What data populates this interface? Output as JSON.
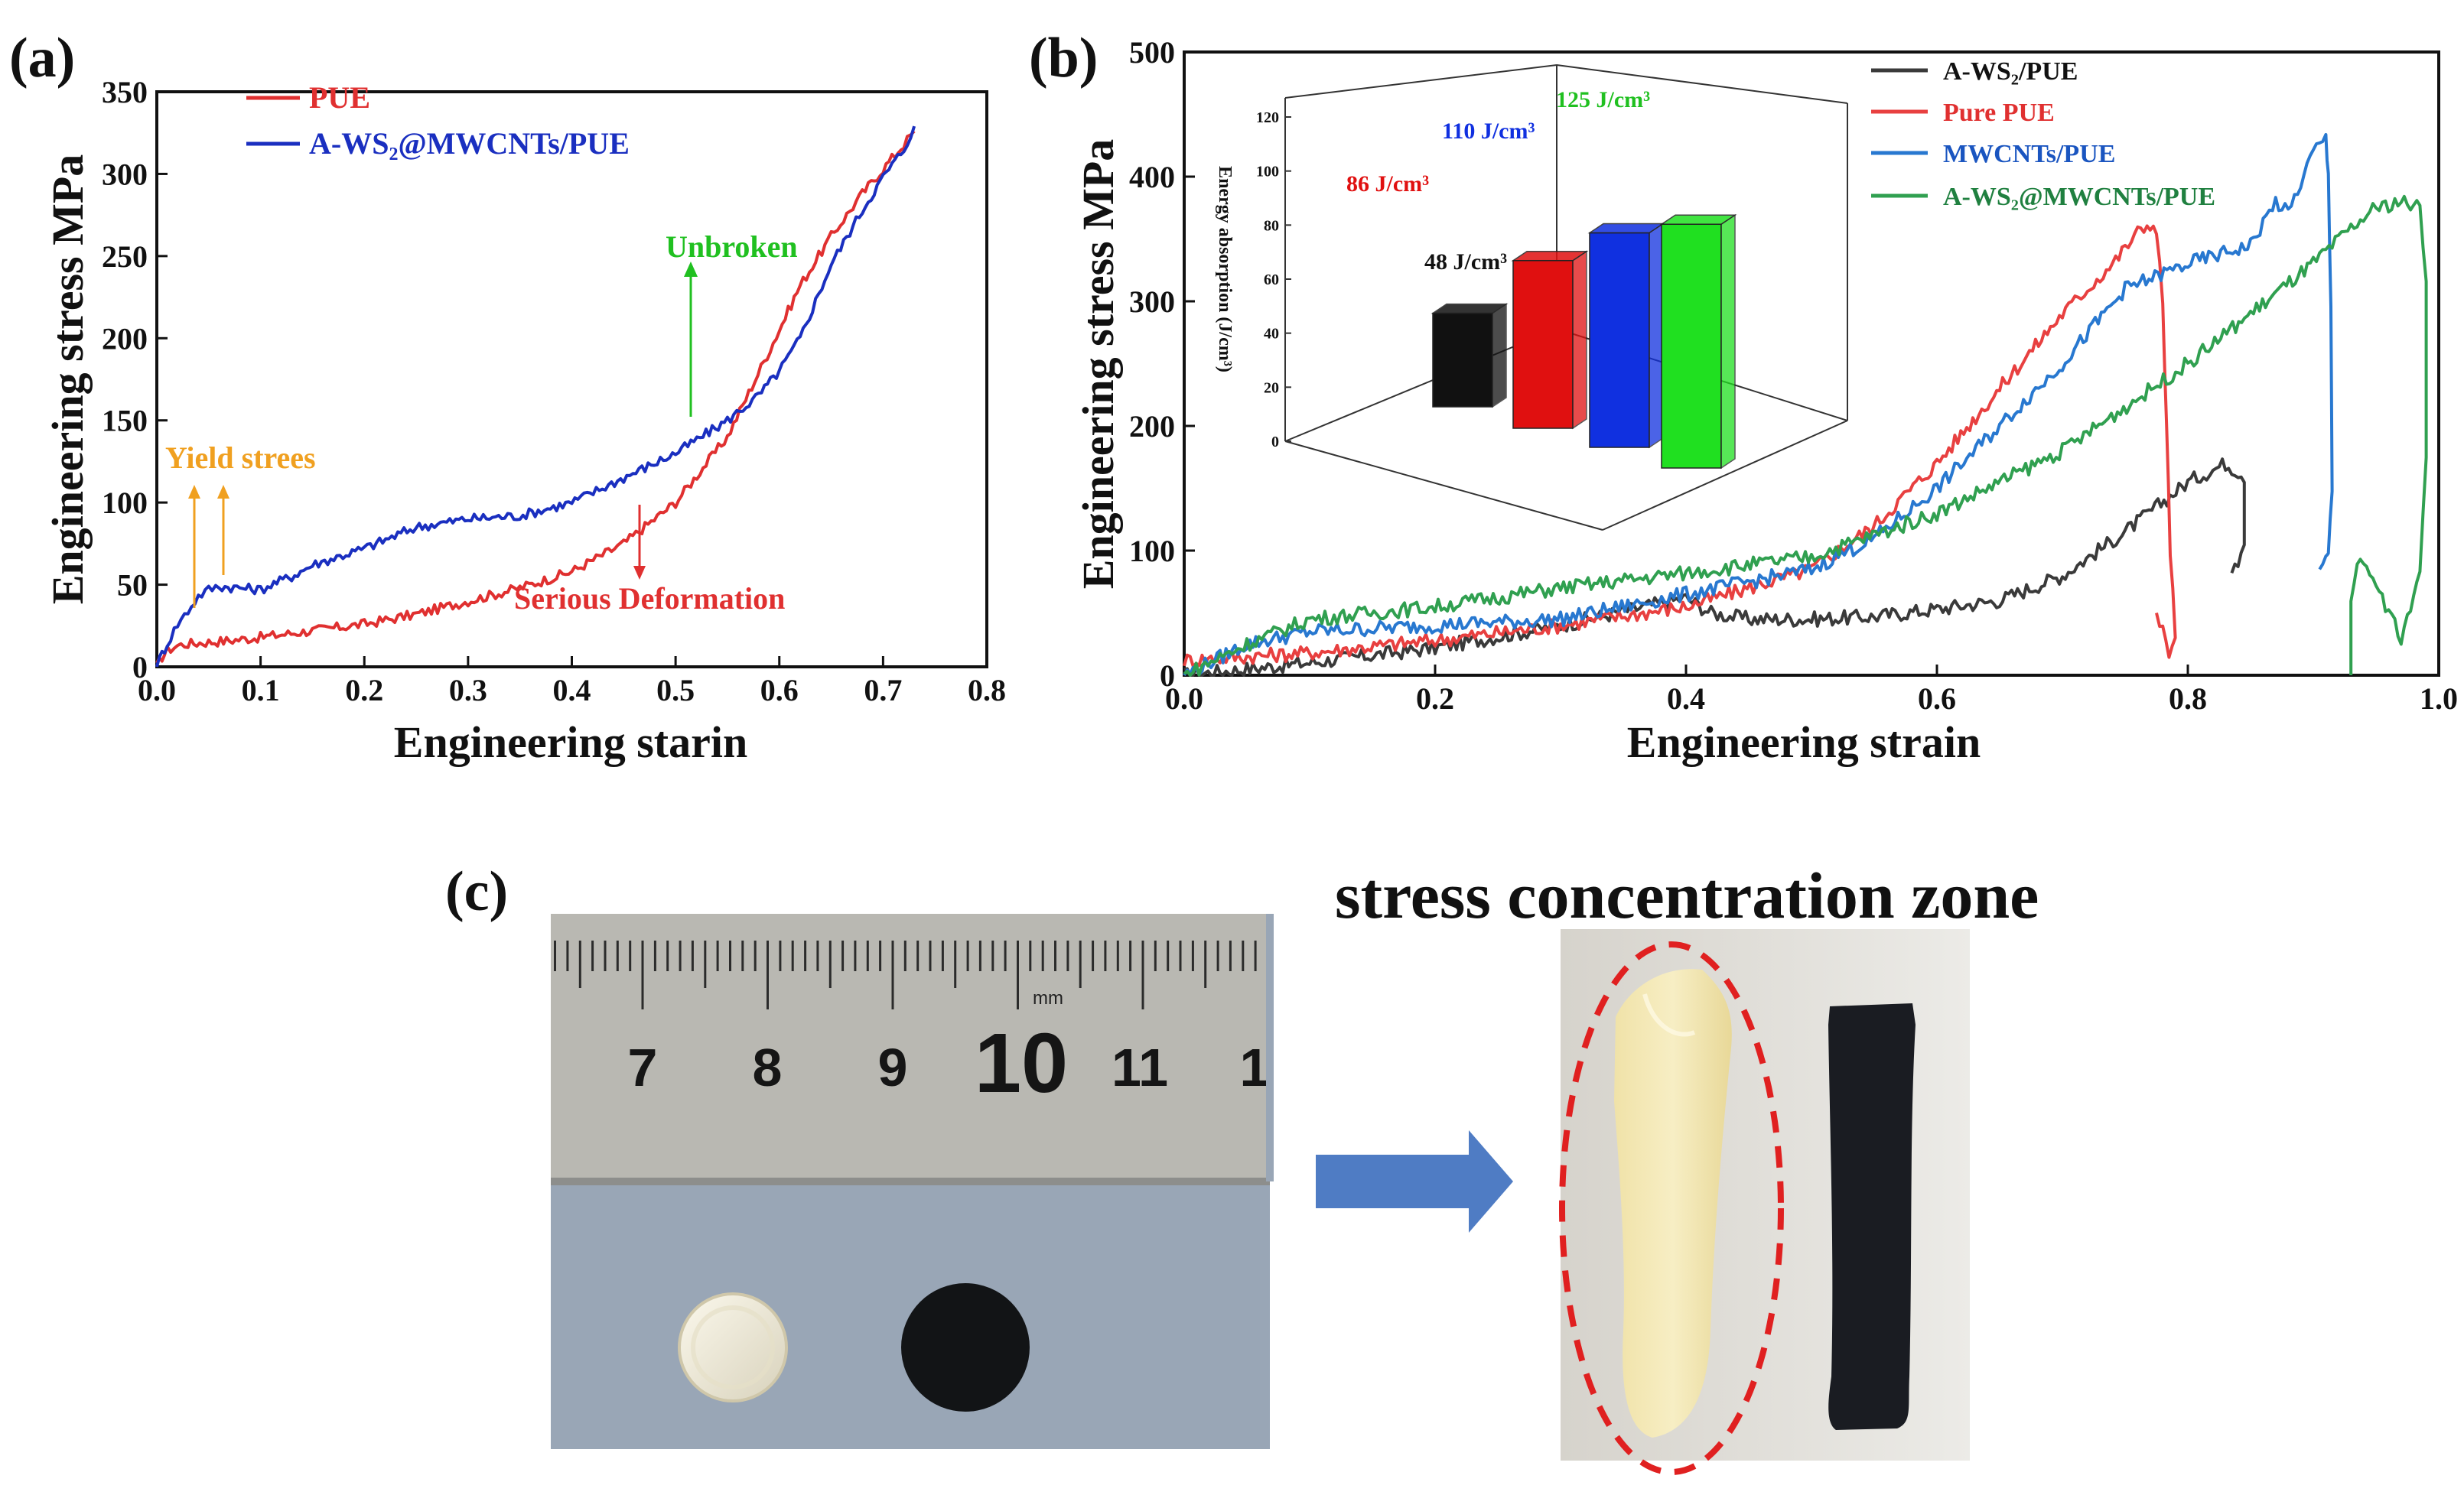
{
  "chart_data": [
    {
      "panel": "(a)",
      "type": "line",
      "xlabel": "Engineering starin",
      "ylabel": "Engineering stress MPa",
      "xlim": [
        0.0,
        0.8
      ],
      "ylim": [
        0,
        350
      ],
      "xticks": [
        "0.0",
        "0.1",
        "0.2",
        "0.3",
        "0.4",
        "0.5",
        "0.6",
        "0.7",
        "0.8"
      ],
      "yticks": [
        "0",
        "50",
        "100",
        "150",
        "200",
        "250",
        "300",
        "350"
      ],
      "legend_position": "top-left",
      "series": [
        {
          "name": "PUE",
          "color": "#e03030",
          "x": [
            0.0,
            0.005,
            0.01,
            0.02,
            0.03,
            0.05,
            0.07,
            0.1,
            0.15,
            0.2,
            0.25,
            0.3,
            0.35,
            0.4,
            0.45,
            0.5,
            0.55,
            0.6,
            0.62,
            0.65,
            0.68,
            0.7,
            0.72,
            0.73
          ],
          "y": [
            0,
            6,
            10,
            13,
            14,
            15,
            16,
            18,
            22,
            26,
            32,
            40,
            48,
            58,
            75,
            100,
            140,
            205,
            232,
            262,
            288,
            303,
            318,
            326
          ]
        },
        {
          "name": "A-WS₂@MWCNTs/PUE",
          "color": "#1a2fc0",
          "x": [
            0.0,
            0.005,
            0.01,
            0.02,
            0.03,
            0.04,
            0.05,
            0.06,
            0.08,
            0.1,
            0.11,
            0.13,
            0.15,
            0.2,
            0.25,
            0.3,
            0.35,
            0.4,
            0.45,
            0.5,
            0.55,
            0.58,
            0.6,
            0.62,
            0.65,
            0.68,
            0.7,
            0.72,
            0.73
          ],
          "y": [
            0,
            8,
            14,
            26,
            34,
            43,
            47,
            49,
            48,
            47,
            50,
            55,
            62,
            72,
            85,
            90,
            92,
            100,
            115,
            130,
            150,
            165,
            180,
            200,
            245,
            278,
            298,
            315,
            329
          ]
        }
      ],
      "annotations": [
        {
          "text": "Unbroken",
          "color": "#20c020",
          "x": 0.51
        },
        {
          "text": "Yield strees",
          "color": "#f0a020",
          "x": [
            0.033,
            0.062
          ]
        },
        {
          "text": "Serious Deformation",
          "color": "#e03030",
          "x": 0.46
        }
      ]
    },
    {
      "panel": "(b)",
      "type": "line",
      "xlabel": "Engineering strain",
      "ylabel": "Engineering stress MPa",
      "xlim": [
        0.0,
        1.0
      ],
      "ylim": [
        0,
        500
      ],
      "xticks": [
        "0.0",
        "0.2",
        "0.4",
        "0.6",
        "0.8",
        "1.0"
      ],
      "yticks": [
        "0",
        "100",
        "200",
        "300",
        "400",
        "500"
      ],
      "legend_position": "top-right",
      "series": [
        {
          "name": "A-WS₂/PUE",
          "color": "#3a3a3a",
          "x": [
            0.0,
            0.05,
            0.1,
            0.2,
            0.3,
            0.38,
            0.4,
            0.42,
            0.45,
            0.5,
            0.55,
            0.6,
            0.65,
            0.7,
            0.75,
            0.8,
            0.83,
            0.845,
            0.845,
            0.84,
            0.835
          ],
          "y": [
            0,
            5,
            10,
            22,
            40,
            58,
            62,
            50,
            45,
            45,
            47,
            53,
            60,
            80,
            115,
            155,
            170,
            160,
            110,
            90,
            82
          ]
        },
        {
          "name": "Pure PUE",
          "color": "#e84040",
          "x": [
            0.0,
            0.05,
            0.1,
            0.2,
            0.3,
            0.4,
            0.5,
            0.55,
            0.6,
            0.65,
            0.7,
            0.74,
            0.76,
            0.77,
            0.775,
            0.78,
            0.783,
            0.786,
            0.79,
            0.785,
            0.78,
            0.775
          ],
          "y": [
            12,
            15,
            18,
            28,
            40,
            55,
            85,
            120,
            170,
            230,
            290,
            330,
            355,
            363,
            355,
            300,
            200,
            100,
            30,
            10,
            40,
            50
          ]
        },
        {
          "name": "MWCNTs/PUE",
          "color": "#2878d0",
          "x": [
            0.0,
            0.05,
            0.1,
            0.2,
            0.3,
            0.4,
            0.5,
            0.55,
            0.6,
            0.65,
            0.7,
            0.75,
            0.8,
            0.85,
            0.87,
            0.88,
            0.9,
            0.91,
            0.912,
            0.914,
            0.915,
            0.912,
            0.91,
            0.905
          ],
          "y": [
            0,
            25,
            35,
            40,
            45,
            65,
            85,
            110,
            150,
            200,
            250,
            310,
            330,
            345,
            380,
            370,
            420,
            430,
            400,
            300,
            150,
            100,
            90,
            85
          ]
        },
        {
          "name": "A-WS₂@MWCNTs/PUE",
          "color": "#30a050",
          "x": [
            0.0,
            0.05,
            0.1,
            0.2,
            0.3,
            0.4,
            0.5,
            0.6,
            0.7,
            0.8,
            0.85,
            0.9,
            0.93,
            0.95,
            0.97,
            0.985,
            0.99,
            0.99,
            0.985,
            0.97,
            0.96,
            0.945,
            0.935,
            0.93,
            0.93
          ],
          "y": [
            0,
            25,
            45,
            55,
            70,
            82,
            95,
            130,
            180,
            250,
            290,
            330,
            358,
            375,
            380,
            375,
            320,
            180,
            80,
            30,
            50,
            80,
            95,
            60,
            0
          ]
        }
      ],
      "inset": {
        "type": "bar",
        "ylabel": "Energy absorption (J/cm³)",
        "yticks": [
          "0",
          "20",
          "40",
          "60",
          "80",
          "100",
          "120"
        ],
        "ylim": [
          0,
          120
        ],
        "values": [
          48,
          86,
          110,
          125
        ],
        "labels": [
          "48 J/cm³",
          "86 J/cm³",
          "110 J/cm³",
          "125 J/cm³"
        ],
        "colors": [
          "#111111",
          "#e01010",
          "#1030e0",
          "#20e020"
        ]
      }
    }
  ],
  "panel_c": {
    "label": "(c)",
    "heading": "stress concentration zone",
    "ruler": {
      "unit": "mm",
      "numbers": [
        "7",
        "8",
        "9",
        "10",
        "11",
        "1"
      ]
    },
    "colors": {
      "arrow": "#4f7cc4",
      "dash_ellipse": "#e02020",
      "ruler_metal": "#b8b8b4",
      "background": "#98a4b4"
    }
  },
  "panel_labels": {
    "a": "(a)",
    "b": "(b)"
  }
}
